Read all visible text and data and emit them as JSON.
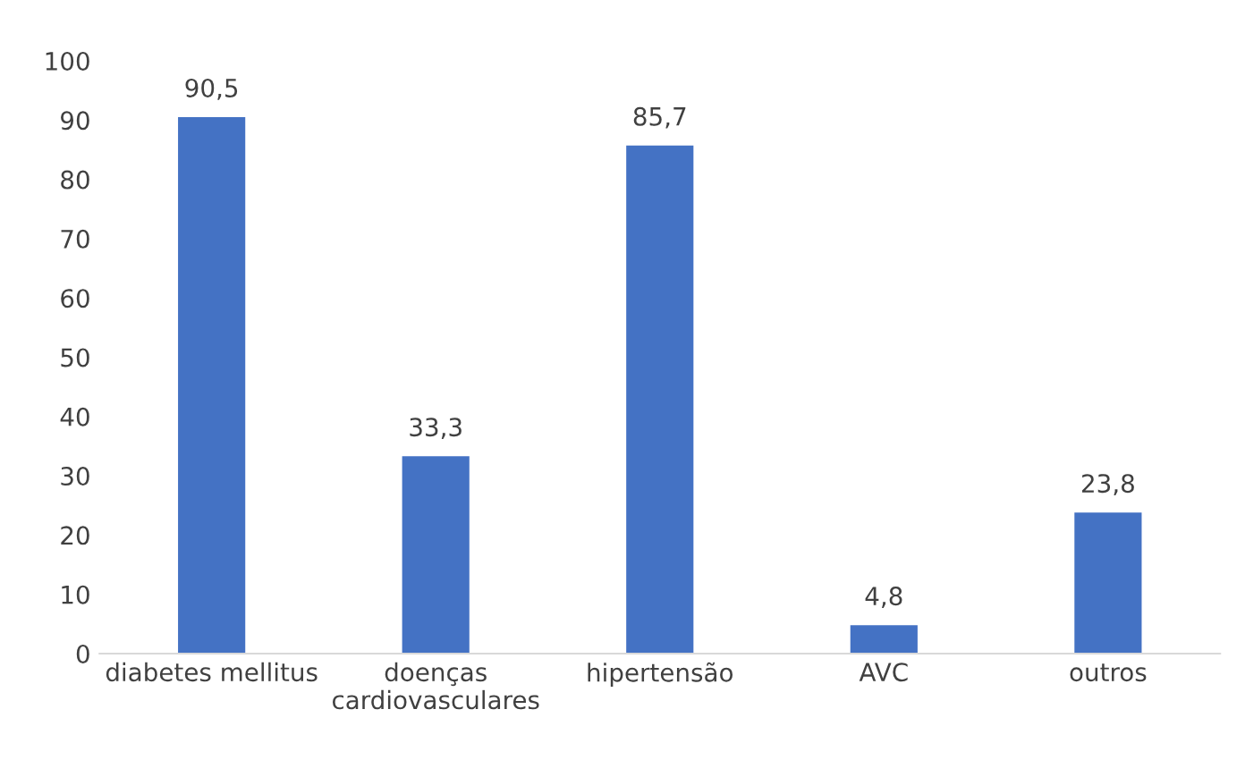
{
  "chart_data": {
    "type": "bar",
    "categories": [
      "diabetes mellitus",
      "doenças\ncardiovasculares",
      "hipertensão",
      "AVC",
      "outros"
    ],
    "values": [
      90.5,
      33.3,
      85.7,
      4.8,
      23.8
    ],
    "value_labels": [
      "90,5",
      "33,3",
      "85,7",
      "4,8",
      "23,8"
    ],
    "color": "#4472c4",
    "ylim": [
      0,
      100
    ],
    "yticks": [
      0,
      10,
      20,
      30,
      40,
      50,
      60,
      70,
      80,
      90,
      100
    ],
    "grid": false,
    "legend": false
  }
}
